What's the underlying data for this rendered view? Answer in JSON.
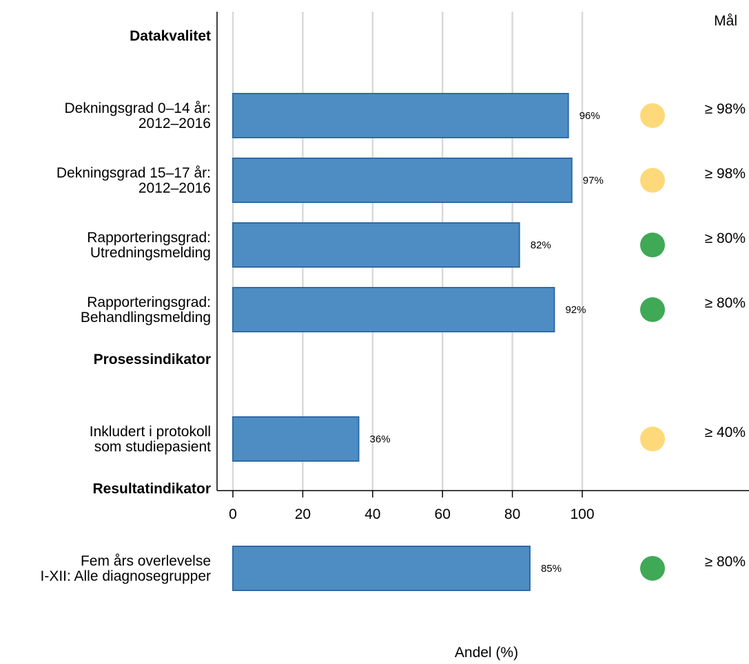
{
  "chart_data": {
    "type": "bar",
    "orientation": "horizontal",
    "xlabel": "Andel (%)",
    "xlim": [
      0,
      100
    ],
    "xticks": [
      "0",
      "20",
      "40",
      "60",
      "80",
      "100"
    ],
    "grid": true,
    "goal_header": "Mål",
    "colors": {
      "bar_fill": "#4e8dc4",
      "bar_stroke": "#2f6aa5",
      "status_yellow": "#fdd97a",
      "status_green": "#3fa956",
      "grid": "#d9d9d9"
    },
    "rows": [
      {
        "kind": "heading",
        "label": [
          "Datakvalitet"
        ]
      },
      {
        "kind": "bar",
        "label": [
          "Dekningsgrad 0–14 år:",
          "2012–2016"
        ],
        "value": 96,
        "value_label": "96%",
        "status": "yellow",
        "goal": "≥ 98%"
      },
      {
        "kind": "bar",
        "label": [
          "Dekningsgrad 15–17 år:",
          "2012–2016"
        ],
        "value": 97,
        "value_label": "97%",
        "status": "yellow",
        "goal": "≥ 98%"
      },
      {
        "kind": "bar",
        "label": [
          "Rapporteringsgrad:",
          "Utredningsmelding"
        ],
        "value": 82,
        "value_label": "82%",
        "status": "green",
        "goal": "≥ 80%"
      },
      {
        "kind": "bar",
        "label": [
          "Rapporteringsgrad:",
          "Behandlingsmelding"
        ],
        "value": 92,
        "value_label": "92%",
        "status": "green",
        "goal": "≥ 80%"
      },
      {
        "kind": "heading",
        "label": [
          "Prosessindikator"
        ]
      },
      {
        "kind": "bar",
        "label": [
          "Inkludert i protokoll",
          "som studiepasient"
        ],
        "value": 36,
        "value_label": "36%",
        "status": "yellow",
        "goal": "≥ 40%"
      },
      {
        "kind": "heading",
        "label": [
          "Resultatindikator"
        ]
      },
      {
        "kind": "bar",
        "label": [
          "Fem års overlevelse",
          "I-XII: Alle diagnosegrupper"
        ],
        "value": 85,
        "value_label": "85%",
        "status": "green",
        "goal": "≥ 80%"
      }
    ]
  }
}
